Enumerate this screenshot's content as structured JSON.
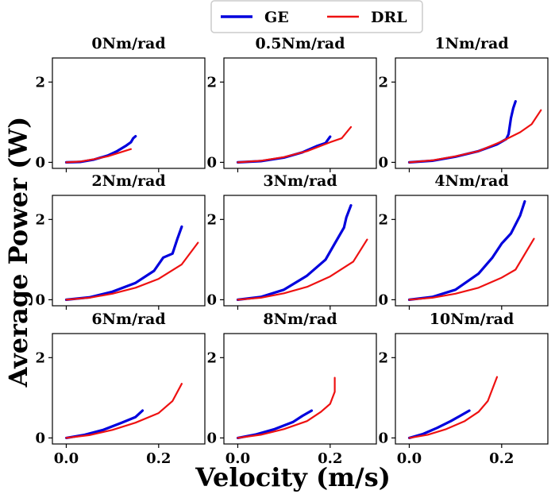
{
  "chart_data": {
    "type": "line",
    "ylabel": "Average Power (W)",
    "xlabel": "Velocity (m/s)",
    "xlim": [
      -0.03,
      0.3
    ],
    "ylim": [
      -0.15,
      2.6
    ],
    "xticks": [
      0.0,
      0.2
    ],
    "xtick_labels": [
      "0.0",
      "0.2"
    ],
    "yticks": [
      0,
      2
    ],
    "ytick_labels": [
      "0",
      "2"
    ],
    "legend": {
      "position": "top-center",
      "entries": [
        {
          "name": "GE",
          "color": "#0000dd"
        },
        {
          "name": "DRL",
          "color": "#ee1111"
        }
      ]
    },
    "panels": [
      {
        "title": "0Nm/rad",
        "series": [
          {
            "name": "GE",
            "x": [
              0,
              0.03,
              0.06,
              0.09,
              0.11,
              0.13,
              0.14,
              0.145,
              0.15
            ],
            "y": [
              0,
              0.01,
              0.07,
              0.17,
              0.28,
              0.42,
              0.5,
              0.6,
              0.65
            ]
          },
          {
            "name": "DRL",
            "x": [
              0,
              0.03,
              0.06,
              0.09,
              0.12,
              0.14
            ],
            "y": [
              0,
              0.02,
              0.08,
              0.15,
              0.26,
              0.33
            ]
          }
        ]
      },
      {
        "title": "0.5Nm/rad",
        "series": [
          {
            "name": "GE",
            "x": [
              0,
              0.05,
              0.1,
              0.14,
              0.17,
              0.19,
              0.195,
              0.2
            ],
            "y": [
              0,
              0.03,
              0.12,
              0.25,
              0.4,
              0.48,
              0.56,
              0.64
            ]
          },
          {
            "name": "DRL",
            "x": [
              0,
              0.05,
              0.1,
              0.15,
              0.2,
              0.225,
              0.245
            ],
            "y": [
              0,
              0.04,
              0.13,
              0.28,
              0.5,
              0.6,
              0.88
            ]
          }
        ]
      },
      {
        "title": "1Nm/rad",
        "series": [
          {
            "name": "GE",
            "x": [
              0,
              0.05,
              0.1,
              0.15,
              0.19,
              0.21,
              0.215,
              0.22,
              0.225,
              0.23
            ],
            "y": [
              0,
              0.04,
              0.14,
              0.28,
              0.45,
              0.58,
              0.7,
              1.1,
              1.35,
              1.52
            ]
          },
          {
            "name": "DRL",
            "x": [
              0,
              0.05,
              0.1,
              0.15,
              0.2,
              0.24,
              0.265,
              0.285
            ],
            "y": [
              0,
              0.05,
              0.15,
              0.28,
              0.52,
              0.75,
              0.95,
              1.3
            ]
          }
        ]
      },
      {
        "title": "2Nm/rad",
        "series": [
          {
            "name": "GE",
            "x": [
              0,
              0.05,
              0.1,
              0.15,
              0.19,
              0.21,
              0.23,
              0.24,
              0.25
            ],
            "y": [
              0,
              0.06,
              0.2,
              0.42,
              0.72,
              1.05,
              1.15,
              1.5,
              1.82
            ]
          },
          {
            "name": "DRL",
            "x": [
              0,
              0.05,
              0.1,
              0.15,
              0.2,
              0.25,
              0.285
            ],
            "y": [
              0,
              0.05,
              0.15,
              0.3,
              0.52,
              0.88,
              1.42
            ]
          }
        ]
      },
      {
        "title": "3Nm/rad",
        "series": [
          {
            "name": "GE",
            "x": [
              0,
              0.05,
              0.1,
              0.15,
              0.19,
              0.21,
              0.23,
              0.235,
              0.24,
              0.245
            ],
            "y": [
              0,
              0.07,
              0.25,
              0.6,
              1.0,
              1.4,
              1.8,
              2.05,
              2.2,
              2.35
            ]
          },
          {
            "name": "DRL",
            "x": [
              0,
              0.05,
              0.1,
              0.15,
              0.2,
              0.25,
              0.28
            ],
            "y": [
              0,
              0.05,
              0.16,
              0.32,
              0.58,
              0.95,
              1.5
            ]
          }
        ]
      },
      {
        "title": "4Nm/rad",
        "series": [
          {
            "name": "GE",
            "x": [
              0,
              0.05,
              0.1,
              0.15,
              0.18,
              0.2,
              0.22,
              0.24,
              0.25
            ],
            "y": [
              0,
              0.07,
              0.25,
              0.65,
              1.05,
              1.4,
              1.65,
              2.1,
              2.45
            ]
          },
          {
            "name": "DRL",
            "x": [
              0,
              0.05,
              0.1,
              0.15,
              0.2,
              0.23,
              0.27
            ],
            "y": [
              0,
              0.05,
              0.15,
              0.3,
              0.55,
              0.75,
              1.52
            ]
          }
        ]
      },
      {
        "title": "6Nm/rad",
        "series": [
          {
            "name": "GE",
            "x": [
              0,
              0.04,
              0.08,
              0.12,
              0.15,
              0.165
            ],
            "y": [
              0,
              0.08,
              0.2,
              0.38,
              0.52,
              0.68
            ]
          },
          {
            "name": "DRL",
            "x": [
              0,
              0.05,
              0.1,
              0.15,
              0.2,
              0.23,
              0.25
            ],
            "y": [
              0,
              0.07,
              0.2,
              0.38,
              0.62,
              0.92,
              1.35
            ]
          }
        ]
      },
      {
        "title": "8Nm/rad",
        "series": [
          {
            "name": "GE",
            "x": [
              0,
              0.04,
              0.08,
              0.12,
              0.14,
              0.16
            ],
            "y": [
              0,
              0.09,
              0.22,
              0.4,
              0.55,
              0.68
            ]
          },
          {
            "name": "DRL",
            "x": [
              0,
              0.05,
              0.1,
              0.15,
              0.18,
              0.2,
              0.21,
              0.21
            ],
            "y": [
              0,
              0.08,
              0.22,
              0.42,
              0.65,
              0.85,
              1.15,
              1.5
            ]
          }
        ]
      },
      {
        "title": "10Nm/rad",
        "series": [
          {
            "name": "GE",
            "x": [
              0,
              0.03,
              0.06,
              0.09,
              0.11,
              0.13
            ],
            "y": [
              0,
              0.1,
              0.25,
              0.42,
              0.55,
              0.68
            ]
          },
          {
            "name": "DRL",
            "x": [
              0,
              0.04,
              0.08,
              0.12,
              0.15,
              0.17,
              0.19
            ],
            "y": [
              0,
              0.08,
              0.22,
              0.42,
              0.65,
              0.92,
              1.52
            ]
          }
        ]
      }
    ]
  }
}
